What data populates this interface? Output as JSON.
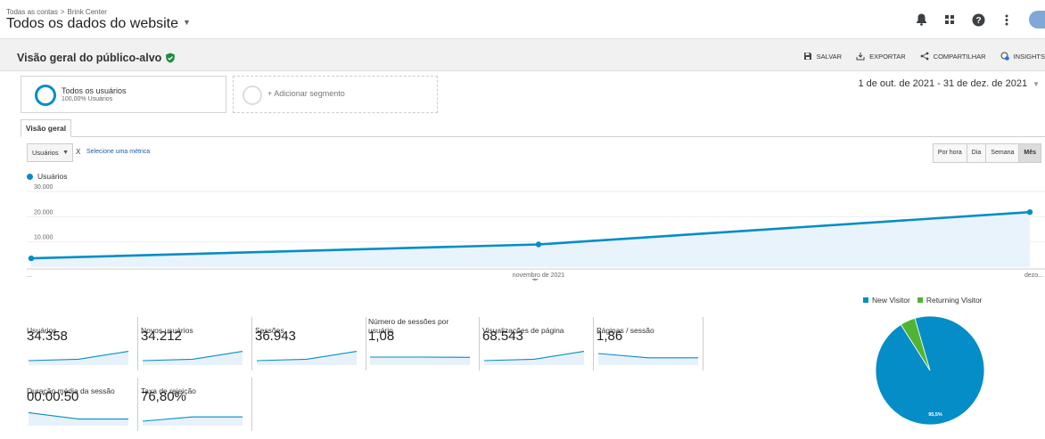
{
  "header": {
    "breadcrumb": [
      "Todas as contas",
      "Brink Center"
    ],
    "breadcrumb_sep": ">",
    "account_view": "Todos os dados do website"
  },
  "report": {
    "title": "Visão geral do público-alvo",
    "actions": [
      "SALVAR",
      "EXPORTAR",
      "COMPARTILHAR",
      "INSIGHTS"
    ]
  },
  "segments": {
    "active": {
      "name": "Todos os usuários",
      "share": "100,00% Usuários"
    },
    "add_label": "+ Adicionar segmento"
  },
  "date_range": "1 de out. de 2021 - 31 de dez. de 2021",
  "tab": "Visão geral",
  "metric_selector": {
    "selected": "Usuários",
    "vs": "X",
    "select_metric": "Selecione uma métrica"
  },
  "granularity": {
    "options": [
      "Por hora",
      "Dia",
      "Semana",
      "Mês"
    ],
    "active": "Mês"
  },
  "chart_data": {
    "type": "area",
    "series": [
      {
        "name": "Usuários",
        "values": [
          3500,
          9000,
          21800
        ],
        "color": "#058dc7"
      }
    ],
    "x": [
      "...",
      "novembro de 2021",
      "dezo..."
    ],
    "y_ticks": [
      "30.000",
      "20.000",
      "10.000"
    ],
    "ylim": [
      0,
      30000
    ],
    "grid": true
  },
  "scorecards": [
    {
      "label": "Usuários",
      "value": "34.358",
      "trend": [
        0.25,
        0.35,
        0.9
      ]
    },
    {
      "label": "Novos usuários",
      "value": "34.212",
      "trend": [
        0.25,
        0.35,
        0.9
      ]
    },
    {
      "label": "Sessões",
      "value": "36.943",
      "trend": [
        0.25,
        0.35,
        0.9
      ]
    },
    {
      "label": "Número de sessões por usuário",
      "value": "1,08",
      "trend": [
        0.5,
        0.5,
        0.48
      ]
    },
    {
      "label": "Visualizações de página",
      "value": "68.543",
      "trend": [
        0.25,
        0.35,
        0.9
      ]
    },
    {
      "label": "Páginas / sessão",
      "value": "1,86",
      "trend": [
        0.75,
        0.45,
        0.45
      ]
    },
    {
      "label": "Duração média da sessão",
      "value": "00:00:50",
      "trend": [
        0.85,
        0.4,
        0.4
      ]
    },
    {
      "label": "Taxa de rejeição",
      "value": "76,80%",
      "trend": [
        0.25,
        0.55,
        0.55
      ]
    }
  ],
  "pie": {
    "legend": [
      {
        "name": "New Visitor",
        "color": "#058dc7"
      },
      {
        "name": "Returning Visitor",
        "color": "#50b432"
      }
    ],
    "values": [
      95.5,
      4.5
    ],
    "slice_label": "95,5%"
  }
}
